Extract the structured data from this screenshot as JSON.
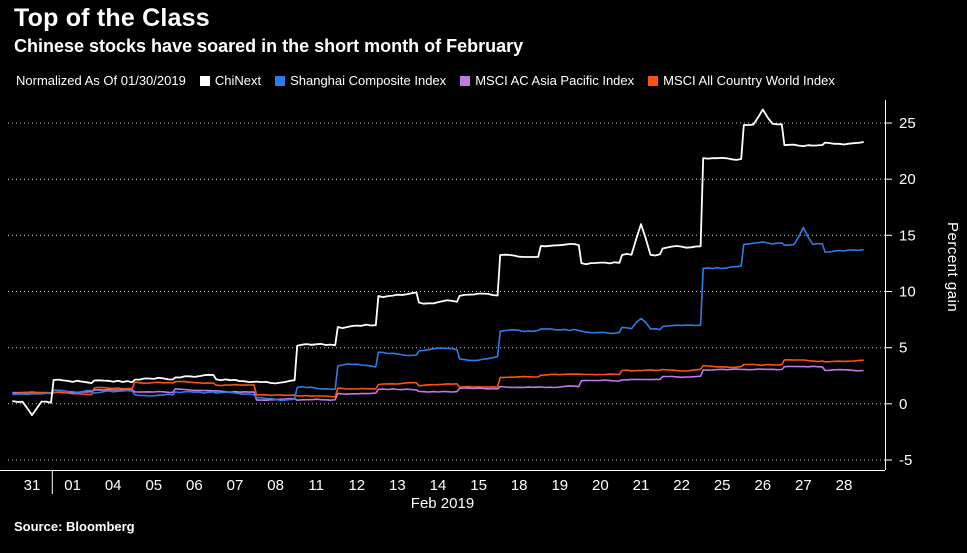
{
  "header": {
    "title": "Top of the Class",
    "subtitle": "Chinese stocks have soared in the short month of February"
  },
  "legend": {
    "prefix": "Normalized As Of 01/30/2019"
  },
  "footer": {
    "source": "Source: Bloomberg"
  },
  "chart_data": {
    "type": "line",
    "title": "Top of the Class",
    "subtitle": "Chinese stocks have soared in the short month of February",
    "xlabel": "Feb 2019",
    "ylabel": "Percent gain",
    "ylim": [
      -6,
      27
    ],
    "yticks": [
      -5,
      0,
      5,
      10,
      15,
      20,
      25
    ],
    "grid": "horizontal-dotted",
    "legend_position": "top",
    "background": "#000000",
    "categories": [
      "31",
      "01",
      "04",
      "05",
      "06",
      "07",
      "08",
      "11",
      "12",
      "13",
      "14",
      "15",
      "18",
      "19",
      "20",
      "21",
      "22",
      "25",
      "26",
      "27",
      "28"
    ],
    "series": [
      {
        "name": "ChiNext",
        "color": "#ffffff",
        "values": [
          0.2,
          2.1,
          2.1,
          2.3,
          2.3,
          2.2,
          2.0,
          5.1,
          6.9,
          9.6,
          9.1,
          9.5,
          13.4,
          13.9,
          12.6,
          13.4,
          13.9,
          21.8,
          24.8,
          23.0,
          23.1
        ],
        "spikes": [
          {
            "i": 0,
            "v": -1.0
          },
          {
            "i": 15,
            "v": 16.0
          },
          {
            "i": 18,
            "v": 26.2
          }
        ]
      },
      {
        "name": "Shanghai Composite Index",
        "color": "#2e7ce8",
        "values": [
          0.8,
          1.3,
          1.1,
          1.0,
          1.1,
          0.9,
          0.6,
          1.6,
          3.5,
          4.6,
          4.7,
          4.1,
          6.4,
          6.6,
          6.4,
          6.9,
          6.7,
          12.1,
          14.3,
          14.0,
          13.5
        ],
        "spikes": [
          {
            "i": 15,
            "v": 7.6
          },
          {
            "i": 19,
            "v": 15.7
          }
        ]
      },
      {
        "name": "MSCI AC Asia Pacific Index",
        "color": "#bd7ae8",
        "values": [
          1.0,
          1.0,
          1.2,
          1.1,
          1.3,
          1.1,
          0.4,
          0.3,
          0.9,
          1.3,
          1.2,
          1.4,
          1.6,
          1.5,
          2.0,
          2.1,
          2.4,
          3.0,
          3.1,
          3.3,
          3.0
        ],
        "spikes": []
      },
      {
        "name": "MSCI All Country World Index",
        "color": "#fb5314",
        "values": [
          0.9,
          1.0,
          1.4,
          1.9,
          2.0,
          1.7,
          0.8,
          0.7,
          1.5,
          1.7,
          1.6,
          1.5,
          2.4,
          2.5,
          2.6,
          3.0,
          3.1,
          3.4,
          3.5,
          3.8,
          3.7
        ],
        "spikes": []
      }
    ]
  }
}
